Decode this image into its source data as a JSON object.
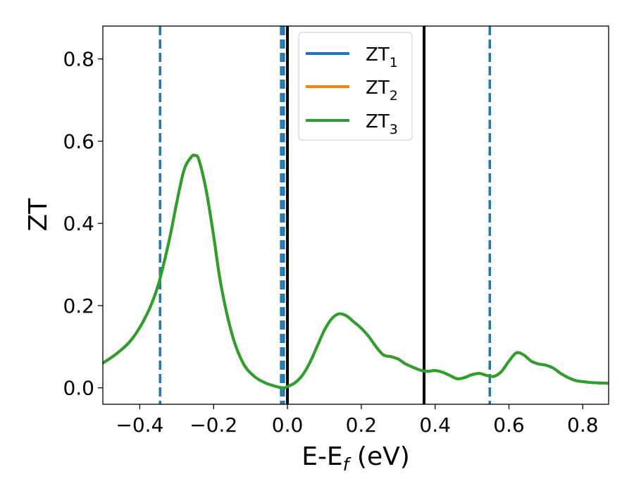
{
  "chart_data": {
    "type": "line",
    "xlabel_main": "E-E",
    "xlabel_sub": "f",
    "xlabel_unit": " (eV)",
    "ylabel": "ZT",
    "xlim": [
      -0.5,
      0.87
    ],
    "ylim": [
      -0.04,
      0.88
    ],
    "x_ticks": [
      -0.4,
      -0.2,
      0.0,
      0.2,
      0.4,
      0.6,
      0.8
    ],
    "x_tick_labels": [
      "−0.4",
      "−0.2",
      "0.0",
      "0.2",
      "0.4",
      "0.6",
      "0.8"
    ],
    "y_ticks": [
      0.0,
      0.2,
      0.4,
      0.6,
      0.8
    ],
    "y_tick_labels": [
      "0.0",
      "0.2",
      "0.4",
      "0.6",
      "0.8"
    ],
    "grid": false,
    "legend_position": "top-center",
    "series": [
      {
        "name": "ZT",
        "subscript": "1",
        "color": "#1f77b4",
        "x": [
          -0.5,
          -0.46,
          -0.42,
          -0.38,
          -0.35,
          -0.32,
          -0.3,
          -0.28,
          -0.26,
          -0.25,
          -0.24,
          -0.22,
          -0.2,
          -0.18,
          -0.15,
          -0.12,
          -0.09,
          -0.06,
          -0.03,
          -0.01,
          0.0,
          0.02,
          0.04,
          0.06,
          0.08,
          0.1,
          0.12,
          0.14,
          0.16,
          0.18,
          0.2,
          0.22,
          0.24,
          0.26,
          0.28,
          0.3,
          0.32,
          0.34,
          0.36,
          0.38,
          0.4,
          0.42,
          0.44,
          0.46,
          0.48,
          0.5,
          0.52,
          0.54,
          0.56,
          0.58,
          0.6,
          0.62,
          0.64,
          0.66,
          0.68,
          0.7,
          0.72,
          0.74,
          0.76,
          0.78,
          0.8,
          0.82,
          0.84,
          0.87
        ],
        "y": [
          0.06,
          0.085,
          0.12,
          0.18,
          0.25,
          0.36,
          0.45,
          0.53,
          0.562,
          0.565,
          0.555,
          0.48,
          0.37,
          0.25,
          0.13,
          0.06,
          0.028,
          0.012,
          0.003,
          0.0,
          0.003,
          0.012,
          0.03,
          0.06,
          0.1,
          0.14,
          0.168,
          0.18,
          0.175,
          0.16,
          0.145,
          0.125,
          0.1,
          0.08,
          0.076,
          0.07,
          0.058,
          0.05,
          0.043,
          0.04,
          0.042,
          0.038,
          0.03,
          0.022,
          0.025,
          0.032,
          0.035,
          0.03,
          0.028,
          0.04,
          0.065,
          0.085,
          0.08,
          0.065,
          0.058,
          0.055,
          0.048,
          0.035,
          0.025,
          0.018,
          0.015,
          0.013,
          0.012,
          0.011
        ]
      },
      {
        "name": "ZT",
        "subscript": "2",
        "color": "#ff7f0e",
        "x": [
          -0.5,
          -0.46,
          -0.42,
          -0.38,
          -0.35,
          -0.32,
          -0.3,
          -0.28,
          -0.26,
          -0.25,
          -0.24,
          -0.22,
          -0.2,
          -0.18,
          -0.15,
          -0.12,
          -0.09,
          -0.06,
          -0.03,
          -0.01,
          0.0,
          0.02,
          0.04,
          0.06,
          0.08,
          0.1,
          0.12,
          0.14,
          0.16,
          0.18,
          0.2,
          0.22,
          0.24,
          0.26,
          0.28,
          0.3,
          0.32,
          0.34,
          0.36,
          0.38,
          0.4,
          0.42,
          0.44,
          0.46,
          0.48,
          0.5,
          0.52,
          0.54,
          0.56,
          0.58,
          0.6,
          0.62,
          0.64,
          0.66,
          0.68,
          0.7,
          0.72,
          0.74,
          0.76,
          0.78,
          0.8,
          0.82,
          0.84,
          0.87
        ],
        "y": [
          0.06,
          0.085,
          0.12,
          0.18,
          0.25,
          0.36,
          0.45,
          0.53,
          0.562,
          0.565,
          0.555,
          0.48,
          0.37,
          0.25,
          0.13,
          0.06,
          0.028,
          0.012,
          0.003,
          0.0,
          0.003,
          0.012,
          0.03,
          0.06,
          0.1,
          0.14,
          0.168,
          0.18,
          0.175,
          0.16,
          0.145,
          0.125,
          0.1,
          0.08,
          0.076,
          0.07,
          0.058,
          0.05,
          0.043,
          0.04,
          0.042,
          0.038,
          0.03,
          0.022,
          0.025,
          0.032,
          0.035,
          0.03,
          0.028,
          0.04,
          0.065,
          0.085,
          0.08,
          0.065,
          0.058,
          0.055,
          0.048,
          0.035,
          0.025,
          0.018,
          0.015,
          0.013,
          0.012,
          0.011
        ]
      },
      {
        "name": "ZT",
        "subscript": "3",
        "color": "#2ca02c",
        "x": [
          -0.5,
          -0.46,
          -0.42,
          -0.38,
          -0.35,
          -0.32,
          -0.3,
          -0.28,
          -0.26,
          -0.25,
          -0.24,
          -0.22,
          -0.2,
          -0.18,
          -0.15,
          -0.12,
          -0.09,
          -0.06,
          -0.03,
          -0.01,
          0.0,
          0.02,
          0.04,
          0.06,
          0.08,
          0.1,
          0.12,
          0.14,
          0.16,
          0.18,
          0.2,
          0.22,
          0.24,
          0.26,
          0.28,
          0.3,
          0.32,
          0.34,
          0.36,
          0.38,
          0.4,
          0.42,
          0.44,
          0.46,
          0.48,
          0.5,
          0.52,
          0.54,
          0.56,
          0.58,
          0.6,
          0.62,
          0.64,
          0.66,
          0.68,
          0.7,
          0.72,
          0.74,
          0.76,
          0.78,
          0.8,
          0.82,
          0.84,
          0.87
        ],
        "y": [
          0.06,
          0.085,
          0.12,
          0.18,
          0.25,
          0.36,
          0.45,
          0.53,
          0.562,
          0.565,
          0.555,
          0.48,
          0.37,
          0.25,
          0.13,
          0.06,
          0.028,
          0.012,
          0.003,
          0.0,
          0.003,
          0.012,
          0.03,
          0.06,
          0.1,
          0.14,
          0.168,
          0.18,
          0.175,
          0.16,
          0.145,
          0.125,
          0.1,
          0.08,
          0.076,
          0.07,
          0.058,
          0.05,
          0.043,
          0.04,
          0.042,
          0.038,
          0.03,
          0.022,
          0.025,
          0.032,
          0.035,
          0.03,
          0.028,
          0.04,
          0.065,
          0.085,
          0.08,
          0.065,
          0.058,
          0.055,
          0.048,
          0.035,
          0.025,
          0.018,
          0.015,
          0.013,
          0.012,
          0.011
        ]
      }
    ],
    "vertical_lines": [
      {
        "x": -0.345,
        "color": "#1f77b4",
        "style": "dashed"
      },
      {
        "x": -0.017,
        "color": "#1f77b4",
        "style": "dashed"
      },
      {
        "x": -0.01,
        "color": "#1f77b4",
        "style": "dashed"
      },
      {
        "x": 0.0,
        "color": "#000000",
        "style": "solid"
      },
      {
        "x": 0.37,
        "color": "#000000",
        "style": "solid"
      },
      {
        "x": 0.548,
        "color": "#1f77b4",
        "style": "dashed"
      }
    ]
  }
}
